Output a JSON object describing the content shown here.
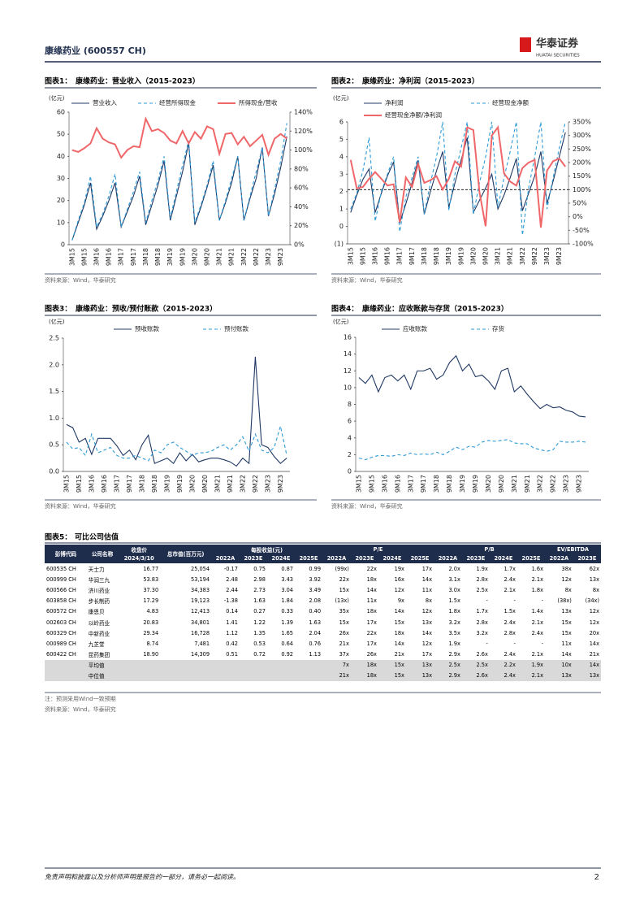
{
  "header": {
    "company": "康缘药业 (600557 CH)",
    "logo_cn": "华泰证券",
    "logo_en": "HUATAI SECURITIES"
  },
  "chart_data": [
    {
      "type": "line",
      "label": "图表1：",
      "title": "康缘药业：营业收入（2015-2023）",
      "y_label": "(亿元)",
      "categories": [
        "3M15",
        null,
        "9M15",
        null,
        "3M16",
        null,
        "9M16",
        null,
        "3M17",
        null,
        "9M17",
        null,
        "3M18",
        null,
        "9M18",
        null,
        "3M19",
        null,
        "9M19",
        null,
        "3M20",
        null,
        "9M20",
        null,
        "3M21",
        null,
        "9M21",
        null,
        "3M22",
        null,
        "9M22",
        null,
        "3M23",
        null,
        "9M23",
        null
      ],
      "series": [
        {
          "name": "营业收入",
          "color": "#1f3864",
          "dash": false,
          "values": [
            2,
            10,
            18,
            28,
            7,
            13,
            20,
            28,
            8,
            15,
            22,
            31,
            9,
            18,
            27,
            38,
            11,
            22,
            33,
            46,
            9,
            17,
            26,
            36,
            11,
            19,
            28,
            40,
            11,
            21,
            30,
            44,
            13,
            23,
            35,
            49
          ]
        },
        {
          "name": "经营所得现金",
          "color": "#2e9bd6",
          "dash": true,
          "values": [
            2,
            11,
            19,
            31,
            8,
            14,
            22,
            32,
            8,
            16,
            24,
            33,
            10,
            20,
            29,
            40,
            12,
            24,
            36,
            47,
            10,
            18,
            27,
            38,
            11,
            20,
            30,
            40,
            11,
            22,
            33,
            44,
            13,
            25,
            38,
            55
          ]
        },
        {
          "name": "所得现金/营收",
          "color": "#f0676a",
          "dash": false,
          "axis": "y2",
          "values": [
            100,
            98,
            102,
            107,
            123,
            112,
            108,
            106,
            92,
            100,
            104,
            103,
            133,
            120,
            122,
            118,
            110,
            107,
            120,
            107,
            119,
            112,
            125,
            122,
            96,
            117,
            118,
            106,
            114,
            104,
            110,
            116,
            95,
            112,
            117,
            112
          ]
        }
      ],
      "ylim": [
        0,
        60
      ],
      "yticks": [
        0,
        10,
        20,
        30,
        40,
        50,
        60
      ],
      "y2lim": [
        0,
        140
      ],
      "y2ticks": [
        {
          "value": 0,
          "label": "0%"
        },
        {
          "value": 20,
          "label": "20%"
        },
        {
          "value": 40,
          "label": "40%"
        },
        {
          "value": 60,
          "label": "60%"
        },
        {
          "value": 80,
          "label": "80%"
        },
        {
          "value": 100,
          "label": "100%"
        },
        {
          "value": 120,
          "label": "120%"
        },
        {
          "value": 140,
          "label": "140%"
        }
      ],
      "source": "资料来源：Wind，华泰研究"
    },
    {
      "type": "line",
      "label": "图表2：",
      "title": "康缘药业：净利润（2015-2023）",
      "y_label": "(亿元)",
      "categories": [
        "3M15",
        null,
        "9M15",
        null,
        "3M16",
        null,
        "9M16",
        null,
        "3M17",
        null,
        "9M17",
        null,
        "3M18",
        null,
        "9M18",
        null,
        "3M19",
        null,
        "9M19",
        null,
        "3M20",
        null,
        "9M20",
        null,
        "3M21",
        null,
        "9M21",
        null,
        "3M22",
        null,
        "9M22",
        null,
        "3M23",
        null,
        "9M23",
        null
      ],
      "series": [
        {
          "name": "净利润",
          "color": "#1f3864",
          "dash": false,
          "values": [
            0.8,
            1.8,
            2.7,
            3.3,
            0.8,
            1.9,
            2.9,
            3.7,
            0.2,
            1.3,
            2.5,
            3.8,
            0.7,
            2.0,
            3.2,
            4.3,
            1.1,
            2.5,
            3.8,
            5.1,
            0.8,
            1.5,
            2.2,
            3.0,
            1.0,
            1.8,
            2.8,
            3.9,
            0.9,
            1.9,
            2.9,
            4.3,
            1.3,
            2.6,
            4.0,
            5.4
          ]
        },
        {
          "name": "经营现金净额",
          "color": "#2e9bd6",
          "dash": true,
          "values": [
            1.0,
            1.9,
            3.2,
            5.1,
            0.3,
            2.0,
            3.0,
            4.0,
            -0.3,
            1.7,
            2.8,
            4.0,
            0.7,
            2.5,
            4.0,
            6.0,
            0.9,
            3.0,
            4.5,
            6.0,
            0.7,
            2.5,
            4.0,
            6.0,
            1.1,
            2.8,
            4.3,
            6.0,
            -0.5,
            2.2,
            4.0,
            6.0,
            1.0,
            2.8,
            4.5,
            6.0
          ]
        },
        {
          "name": "经营现金净额/净利润",
          "color": "#f0676a",
          "dash": false,
          "axis": "y2",
          "values": [
            210,
            105,
            110,
            140,
            165,
            140,
            115,
            120,
            -20,
            145,
            110,
            195,
            125,
            135,
            150,
            100,
            140,
            205,
            185,
            330,
            320,
            90,
            -35,
            300,
            330,
            160,
            130,
            115,
            180,
            200,
            210,
            -40,
            170,
            205,
            215,
            185
          ]
        }
      ],
      "ylim": [
        -1,
        6
      ],
      "yticks": [
        {
          "value": -1,
          "label": "(1)"
        },
        0,
        1,
        2,
        3,
        4,
        5,
        6
      ],
      "y2lim": [
        -100,
        350
      ],
      "y2ticks": [
        {
          "value": -100,
          "label": "-100%"
        },
        {
          "value": -50,
          "label": "-50%"
        },
        {
          "value": 0,
          "label": "0%"
        },
        {
          "value": 50,
          "label": "50%"
        },
        {
          "value": 100,
          "label": "100%"
        },
        {
          "value": 150,
          "label": "150%"
        },
        {
          "value": 200,
          "label": "200%"
        },
        {
          "value": 250,
          "label": "250%"
        },
        {
          "value": 300,
          "label": "300%"
        },
        {
          "value": 350,
          "label": "350%"
        }
      ],
      "reference_line": {
        "axis": "y2",
        "value": 100
      },
      "source": "资料来源：Wind，华泰研究"
    },
    {
      "type": "line",
      "label": "图表3：",
      "title": "康缘药业：预收/预付账款（2015-2023）",
      "y_label": "(亿元)",
      "categories": [
        "3M15",
        null,
        "9M15",
        null,
        "3M16",
        null,
        "9M16",
        null,
        "3M17",
        null,
        "9M17",
        null,
        "3M18",
        null,
        "9M18",
        null,
        "3M19",
        null,
        "9M19",
        null,
        "3M20",
        null,
        "9M20",
        null,
        "3M21",
        null,
        "9M21",
        null,
        "3M22",
        null,
        "9M22",
        null,
        "3M23",
        null,
        "9M23",
        null
      ],
      "series": [
        {
          "name": "预收账款",
          "color": "#1f3864",
          "dash": false,
          "values": [
            0.88,
            0.82,
            0.55,
            0.62,
            0.32,
            0.62,
            0.62,
            0.62,
            0.48,
            0.3,
            0.4,
            0.22,
            0.5,
            0.68,
            0.15,
            0.2,
            0.25,
            0.15,
            0.35,
            0.2,
            0.32,
            0.18,
            0.22,
            0.25,
            0.25,
            0.22,
            0.18,
            0.1,
            0.25,
            0.15,
            2.15,
            0.5,
            0.45,
            0.28,
            0.15,
            0.25
          ]
        },
        {
          "name": "预付账款",
          "color": "#2e9bd6",
          "dash": true,
          "values": [
            0.55,
            0.42,
            0.45,
            0.3,
            0.7,
            0.35,
            0.4,
            0.45,
            0.3,
            0.25,
            0.25,
            0.3,
            0.25,
            0.2,
            0.4,
            0.35,
            0.5,
            0.55,
            0.45,
            0.38,
            0.3,
            0.35,
            0.35,
            0.38,
            0.45,
            0.5,
            0.4,
            0.5,
            0.65,
            0.38,
            0.7,
            0.4,
            0.35,
            0.45,
            0.85,
            0.3
          ]
        }
      ],
      "ylim": [
        0,
        2.5
      ],
      "yticks": [
        {
          "value": 0,
          "label": "0.0"
        },
        0.5,
        {
          "value": 1,
          "label": "1.0"
        },
        1.5,
        {
          "value": 2,
          "label": "2.0"
        },
        2.5
      ],
      "source": "资料来源：Wind，华泰研究"
    },
    {
      "type": "line",
      "label": "图表4：",
      "title": "康缘药业：应收账款与存货（2015-2023）",
      "y_label": "(亿元)",
      "categories": [
        "3M15",
        null,
        "9M15",
        null,
        "3M16",
        null,
        "9M16",
        null,
        "3M17",
        null,
        "9M17",
        null,
        "3M18",
        null,
        "9M18",
        null,
        "3M19",
        null,
        "9M19",
        null,
        "3M20",
        null,
        "9M20",
        null,
        "3M21",
        null,
        "9M21",
        null,
        "3M22",
        null,
        "9M22",
        null,
        "3M23",
        null,
        "9M23",
        null
      ],
      "series": [
        {
          "name": "应收账款",
          "color": "#1f3864",
          "dash": false,
          "values": [
            11.2,
            10.5,
            11.5,
            9.5,
            11.2,
            11.5,
            10.8,
            11.5,
            9.8,
            12.0,
            12.0,
            12.3,
            11.0,
            11.5,
            13.0,
            13.8,
            12.0,
            12.8,
            11.3,
            11.5,
            10.8,
            9.8,
            12.0,
            12.3,
            9.5,
            10.2,
            9.2,
            8.3,
            7.5,
            8.0,
            7.6,
            7.7,
            7.3,
            7.1,
            6.6,
            6.5
          ]
        },
        {
          "name": "存货",
          "color": "#2e9bd6",
          "dash": true,
          "values": [
            1.6,
            1.4,
            1.7,
            1.9,
            1.9,
            1.8,
            2.0,
            1.9,
            2.2,
            2.0,
            2.1,
            2.0,
            2.3,
            2.0,
            2.4,
            2.9,
            2.6,
            3.0,
            2.9,
            3.5,
            3.7,
            3.6,
            3.7,
            3.8,
            3.4,
            3.3,
            3.3,
            2.8,
            2.6,
            2.4,
            2.6,
            3.6,
            3.5,
            3.5,
            3.6,
            3.5
          ]
        }
      ],
      "ylim": [
        0,
        16
      ],
      "yticks": [
        0,
        2,
        4,
        6,
        8,
        10,
        12,
        14,
        16
      ],
      "source": "资料来源：Wind，华泰研究"
    }
  ],
  "table": {
    "label": "图表5：",
    "title": "可比公司估值",
    "header_top": [
      "彭博代码",
      "公司名称",
      "收盘价",
      "总市值(百万元)",
      "每股收益(元)",
      "P/E",
      "P/B",
      "EV/EBITDA"
    ],
    "header_sub": [
      "2024/3/10",
      "2022A",
      "2023E",
      "2024E",
      "2025E",
      "2022A",
      "2023E",
      "2024E",
      "2025E",
      "2022A",
      "2023E",
      "2024E",
      "2025E",
      "2022A",
      "2023E"
    ],
    "rows": [
      [
        "600535 CH",
        "天士力",
        "16.77",
        "25,054",
        "-0.17",
        "0.75",
        "0.87",
        "0.99",
        "(99x)",
        "22x",
        "19x",
        "17x",
        "2.0x",
        "1.9x",
        "1.7x",
        "1.6x",
        "38x",
        "62x"
      ],
      [
        "000999 CH",
        "华润三九",
        "53.83",
        "53,194",
        "2.48",
        "2.98",
        "3.43",
        "3.92",
        "22x",
        "18x",
        "16x",
        "14x",
        "3.1x",
        "2.8x",
        "2.4x",
        "2.1x",
        "12x",
        "13x"
      ],
      [
        "600566 CH",
        "济川药业",
        "37.30",
        "34,383",
        "2.44",
        "2.73",
        "3.04",
        "3.49",
        "15x",
        "14x",
        "12x",
        "11x",
        "3.0x",
        "2.5x",
        "2.1x",
        "1.8x",
        "8x",
        "8x"
      ],
      [
        "603858 CH",
        "步长制药",
        "17.29",
        "19,123",
        "-1.38",
        "1.63",
        "1.84",
        "2.08",
        "(13x)",
        "11x",
        "9x",
        "8x",
        "1.5x",
        "-",
        "-",
        "-",
        "(38x)",
        "(34x)"
      ],
      [
        "600572 CH",
        "康恩贝",
        "4.83",
        "12,413",
        "0.14",
        "0.27",
        "0.33",
        "0.40",
        "35x",
        "18x",
        "14x",
        "12x",
        "1.8x",
        "1.7x",
        "1.5x",
        "1.4x",
        "13x",
        "12x"
      ],
      [
        "002603 CH",
        "以岭药业",
        "20.83",
        "34,801",
        "1.41",
        "1.22",
        "1.39",
        "1.63",
        "15x",
        "17x",
        "15x",
        "13x",
        "3.2x",
        "2.8x",
        "2.4x",
        "2.1x",
        "15x",
        "12x"
      ],
      [
        "600329 CH",
        "中新药业",
        "29.34",
        "16,728",
        "1.12",
        "1.35",
        "1.65",
        "2.04",
        "26x",
        "22x",
        "18x",
        "14x",
        "3.5x",
        "3.2x",
        "2.8x",
        "2.4x",
        "15x",
        "20x"
      ],
      [
        "000989 CH",
        "九芝堂",
        "8.74",
        "7,481",
        "0.42",
        "0.53",
        "0.64",
        "0.76",
        "21x",
        "17x",
        "14x",
        "12x",
        "1.9x",
        "-",
        "-",
        "-",
        "11x",
        "14x"
      ],
      [
        "600422 CH",
        "昆药集团",
        "18.90",
        "14,309",
        "0.51",
        "0.72",
        "0.92",
        "1.13",
        "37x",
        "26x",
        "21x",
        "17x",
        "2.9x",
        "2.6x",
        "2.4x",
        "2.1x",
        "14x",
        "21x"
      ]
    ],
    "summary": [
      {
        "label": "平均值",
        "cells": [
          "7x",
          "18x",
          "15x",
          "13x",
          "2.5x",
          "2.5x",
          "2.2x",
          "1.9x",
          "10x",
          "14x"
        ]
      },
      {
        "label": "中位值",
        "cells": [
          "21x",
          "18x",
          "15x",
          "13x",
          "2.9x",
          "2.6x",
          "2.4x",
          "2.1x",
          "13x",
          "13x"
        ]
      }
    ],
    "note": "注：预测采用Wind一致预期",
    "source": "资料来源：Wind，华泰研究"
  },
  "footer": {
    "disclaimer": "免责声明和披露以及分析师声明是报告的一部分，请务必一起阅读。",
    "page": "2"
  }
}
